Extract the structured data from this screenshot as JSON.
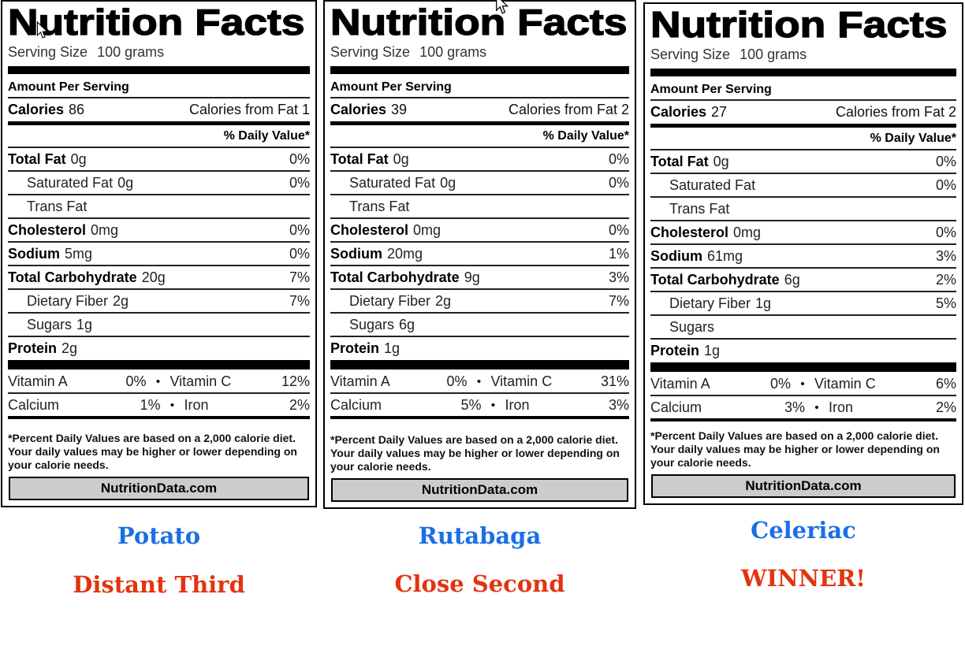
{
  "ui": {
    "bullet": "•"
  },
  "colors": {
    "food_name": "#1b6fe5",
    "food_rank": "#e23410",
    "label_border": "#000000",
    "button_background": "#cccccc"
  },
  "icons": {
    "cursor1": "mouse-arrow-pointer",
    "cursor2": "mouse-arrow-pointer",
    "bullet": "dot-separator"
  },
  "labels": [
    {
      "title": "Nutrition Facts",
      "serving_label": "Serving Size",
      "serving_value": "100 grams",
      "amount_header": "Amount Per Serving",
      "calories_label": "Calories",
      "calories_value": "86",
      "calories_from_fat": "Calories from Fat 1",
      "dv_header": "% Daily Value*",
      "rows": [
        {
          "name": "Total Fat",
          "amount": "0g",
          "dv": "0%",
          "bold": true,
          "indent": false
        },
        {
          "name": "Saturated Fat",
          "amount": "0g",
          "dv": "0%",
          "bold": false,
          "indent": true
        },
        {
          "name": "Trans Fat",
          "amount": "",
          "dv": "",
          "bold": false,
          "indent": true
        },
        {
          "name": "Cholesterol",
          "amount": "0mg",
          "dv": "0%",
          "bold": true,
          "indent": false
        },
        {
          "name": "Sodium",
          "amount": "5mg",
          "dv": "0%",
          "bold": true,
          "indent": false
        },
        {
          "name": "Total Carbohydrate",
          "amount": "20g",
          "dv": "7%",
          "bold": true,
          "indent": false
        },
        {
          "name": "Dietary Fiber",
          "amount": "2g",
          "dv": "7%",
          "bold": false,
          "indent": true
        },
        {
          "name": "Sugars",
          "amount": "1g",
          "dv": "",
          "bold": false,
          "indent": true
        },
        {
          "name": "Protein",
          "amount": "2g",
          "dv": "",
          "bold": true,
          "indent": false
        }
      ],
      "micros": [
        {
          "left_name": "Vitamin A",
          "left_value": "0%",
          "right_name": "Vitamin C",
          "right_value": "12%"
        },
        {
          "left_name": "Calcium",
          "left_value": "1%",
          "right_name": "Iron",
          "right_value": "2%"
        }
      ],
      "footnote": "*Percent Daily Values are based on a 2,000 calorie diet. Your daily values may be higher or lower depending on your calorie needs.",
      "source": "NutritionData.com",
      "food_name": "Potato",
      "food_rank": "Distant Third"
    },
    {
      "title": "Nutrition Facts",
      "serving_label": "Serving Size",
      "serving_value": "100 grams",
      "amount_header": "Amount Per Serving",
      "calories_label": "Calories",
      "calories_value": "39",
      "calories_from_fat": "Calories from Fat 2",
      "dv_header": "% Daily Value*",
      "rows": [
        {
          "name": "Total Fat",
          "amount": "0g",
          "dv": "0%",
          "bold": true,
          "indent": false
        },
        {
          "name": "Saturated Fat",
          "amount": "0g",
          "dv": "0%",
          "bold": false,
          "indent": true
        },
        {
          "name": "Trans Fat",
          "amount": "",
          "dv": "",
          "bold": false,
          "indent": true
        },
        {
          "name": "Cholesterol",
          "amount": "0mg",
          "dv": "0%",
          "bold": true,
          "indent": false
        },
        {
          "name": "Sodium",
          "amount": "20mg",
          "dv": "1%",
          "bold": true,
          "indent": false
        },
        {
          "name": "Total Carbohydrate",
          "amount": "9g",
          "dv": "3%",
          "bold": true,
          "indent": false
        },
        {
          "name": "Dietary Fiber",
          "amount": "2g",
          "dv": "7%",
          "bold": false,
          "indent": true
        },
        {
          "name": "Sugars",
          "amount": "6g",
          "dv": "",
          "bold": false,
          "indent": true
        },
        {
          "name": "Protein",
          "amount": "1g",
          "dv": "",
          "bold": true,
          "indent": false
        }
      ],
      "micros": [
        {
          "left_name": "Vitamin A",
          "left_value": "0%",
          "right_name": "Vitamin C",
          "right_value": "31%"
        },
        {
          "left_name": "Calcium",
          "left_value": "5%",
          "right_name": "Iron",
          "right_value": "3%"
        }
      ],
      "footnote": "*Percent Daily Values are based on a 2,000 calorie diet. Your daily values may be higher or lower depending on your calorie needs.",
      "source": "NutritionData.com",
      "food_name": "Rutabaga",
      "food_rank": "Close Second"
    },
    {
      "title": "Nutrition Facts",
      "serving_label": "Serving Size",
      "serving_value": "100 grams",
      "amount_header": "Amount Per Serving",
      "calories_label": "Calories",
      "calories_value": "27",
      "calories_from_fat": "Calories from Fat 2",
      "dv_header": "% Daily Value*",
      "rows": [
        {
          "name": "Total Fat",
          "amount": "0g",
          "dv": "0%",
          "bold": true,
          "indent": false
        },
        {
          "name": "Saturated Fat",
          "amount": "",
          "dv": "0%",
          "bold": false,
          "indent": true
        },
        {
          "name": "Trans Fat",
          "amount": "",
          "dv": "",
          "bold": false,
          "indent": true
        },
        {
          "name": "Cholesterol",
          "amount": "0mg",
          "dv": "0%",
          "bold": true,
          "indent": false
        },
        {
          "name": "Sodium",
          "amount": "61mg",
          "dv": "3%",
          "bold": true,
          "indent": false
        },
        {
          "name": "Total Carbohydrate",
          "amount": "6g",
          "dv": "2%",
          "bold": true,
          "indent": false
        },
        {
          "name": "Dietary Fiber",
          "amount": "1g",
          "dv": "5%",
          "bold": false,
          "indent": true
        },
        {
          "name": "Sugars",
          "amount": "",
          "dv": "",
          "bold": false,
          "indent": true
        },
        {
          "name": "Protein",
          "amount": "1g",
          "dv": "",
          "bold": true,
          "indent": false
        }
      ],
      "micros": [
        {
          "left_name": "Vitamin A",
          "left_value": "0%",
          "right_name": "Vitamin C",
          "right_value": "6%"
        },
        {
          "left_name": "Calcium",
          "left_value": "3%",
          "right_name": "Iron",
          "right_value": "2%"
        }
      ],
      "footnote": "*Percent Daily Values are based on a 2,000 calorie diet. Your daily values may be higher or lower depending on your calorie needs.",
      "source": "NutritionData.com",
      "food_name": "Celeriac",
      "food_rank": "WINNER!"
    }
  ]
}
